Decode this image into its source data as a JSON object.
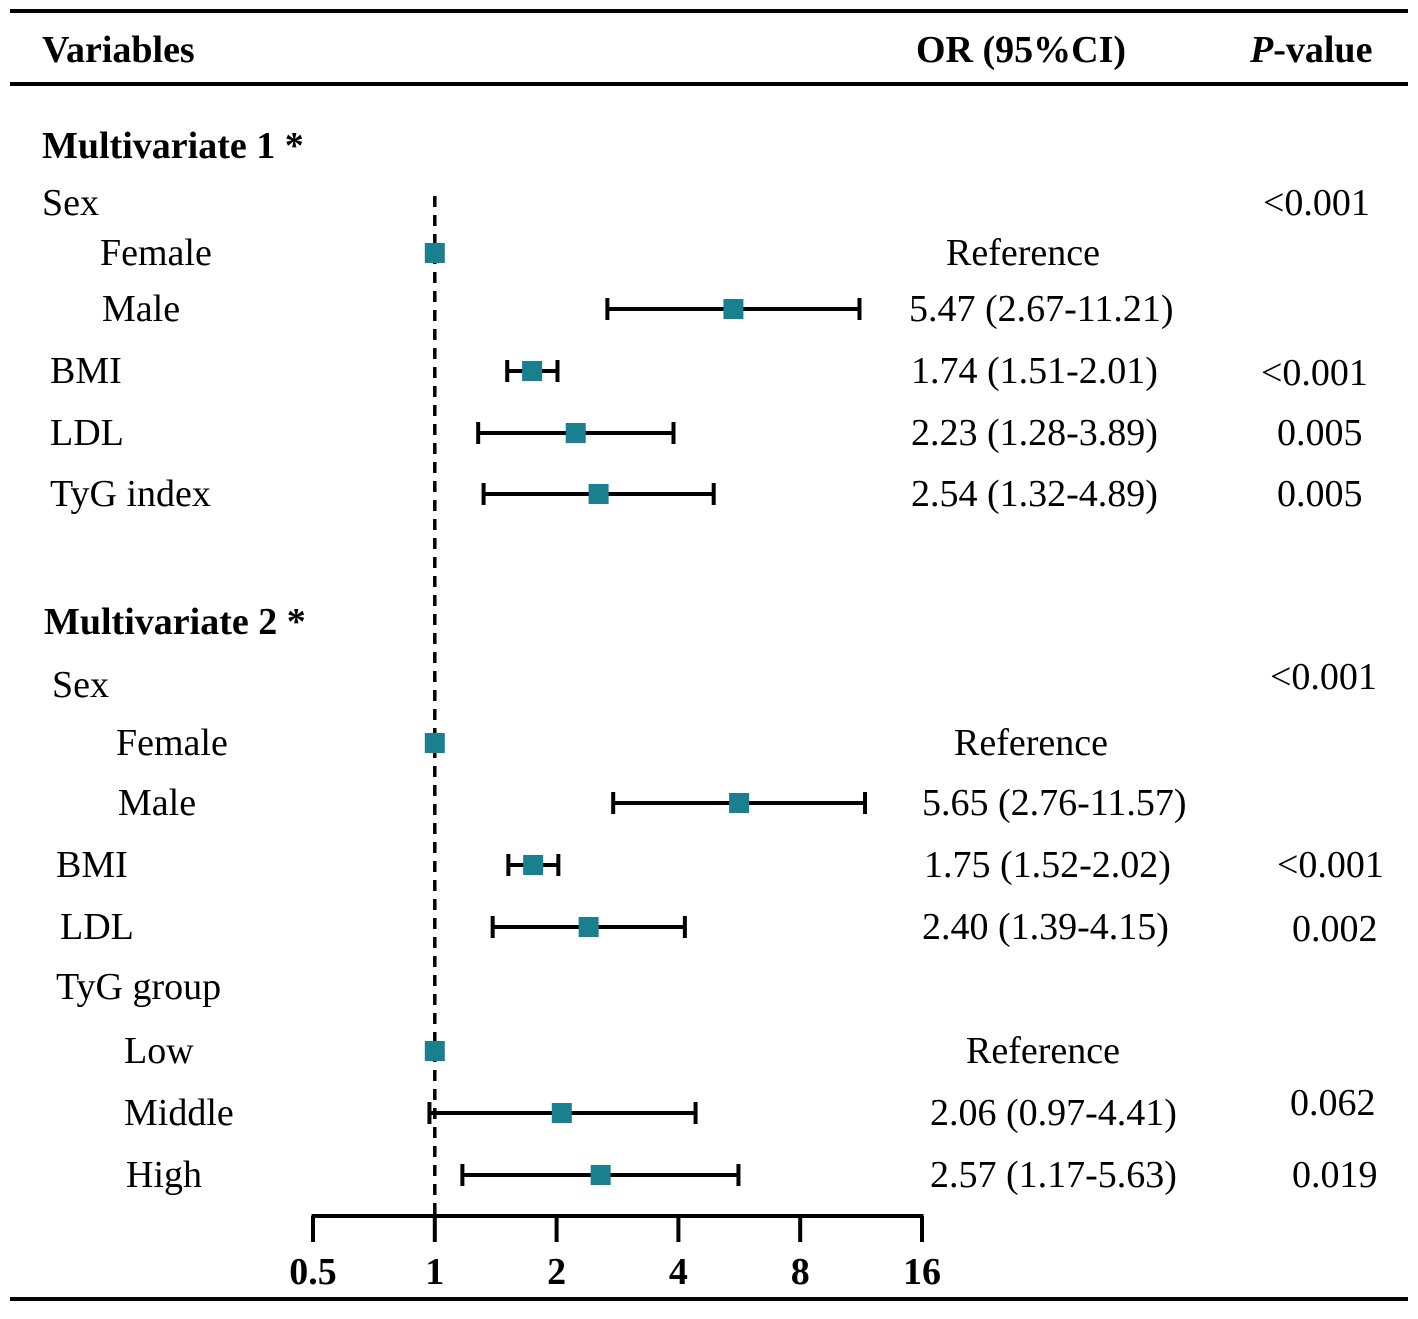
{
  "header": {
    "variables": "Variables",
    "or_ci": "OR (95%CI)",
    "p_italic": "P",
    "p_rest": "-value"
  },
  "colors": {
    "marker": "#1a7f8e",
    "line": "#000000"
  },
  "chart_data": {
    "type": "forest",
    "scale": "log2",
    "xlim": [
      0.5,
      16
    ],
    "ticks": [
      0.5,
      1,
      2,
      4,
      8,
      16
    ],
    "tick_labels": [
      "0.5",
      "1",
      "2",
      "4",
      "8",
      "16"
    ],
    "reference_line": 1,
    "sections": [
      {
        "title": "Multivariate 1 *",
        "rows": [
          {
            "label": "Sex",
            "or": null,
            "lo": null,
            "hi": null,
            "or_text": "",
            "p": "<0.001"
          },
          {
            "label": "Female",
            "or": 1,
            "lo": null,
            "hi": null,
            "or_text": "Reference",
            "p": ""
          },
          {
            "label": "Male",
            "or": 5.47,
            "lo": 2.67,
            "hi": 11.21,
            "or_text": "5.47 (2.67-11.21)",
            "p": ""
          },
          {
            "label": "BMI",
            "or": 1.74,
            "lo": 1.51,
            "hi": 2.01,
            "or_text": "1.74 (1.51-2.01)",
            "p": "<0.001"
          },
          {
            "label": "LDL",
            "or": 2.23,
            "lo": 1.28,
            "hi": 3.89,
            "or_text": "2.23 (1.28-3.89)",
            "p": "0.005"
          },
          {
            "label": "TyG index",
            "or": 2.54,
            "lo": 1.32,
            "hi": 4.89,
            "or_text": "2.54 (1.32-4.89)",
            "p": "0.005"
          }
        ]
      },
      {
        "title": "Multivariate 2 *",
        "rows": [
          {
            "label": "Sex",
            "or": null,
            "lo": null,
            "hi": null,
            "or_text": "",
            "p": "<0.001"
          },
          {
            "label": "Female",
            "or": 1,
            "lo": null,
            "hi": null,
            "or_text": "Reference",
            "p": ""
          },
          {
            "label": "Male",
            "or": 5.65,
            "lo": 2.76,
            "hi": 11.57,
            "or_text": "5.65 (2.76-11.57)",
            "p": ""
          },
          {
            "label": "BMI",
            "or": 1.75,
            "lo": 1.52,
            "hi": 2.02,
            "or_text": "1.75 (1.52-2.02)",
            "p": "<0.001"
          },
          {
            "label": "LDL",
            "or": 2.4,
            "lo": 1.39,
            "hi": 4.15,
            "or_text": "2.40 (1.39-4.15)",
            "p": "0.002"
          },
          {
            "label": "TyG group",
            "or": null,
            "lo": null,
            "hi": null,
            "or_text": "",
            "p": ""
          },
          {
            "label": "Low",
            "or": 1,
            "lo": null,
            "hi": null,
            "or_text": "Reference",
            "p": ""
          },
          {
            "label": "Middle",
            "or": 2.06,
            "lo": 0.97,
            "hi": 4.41,
            "or_text": "2.06 (0.97-4.41)",
            "p": "0.062"
          },
          {
            "label": "High",
            "or": 2.57,
            "lo": 1.17,
            "hi": 5.63,
            "or_text": "2.57 (1.17-5.63)",
            "p": "0.019"
          }
        ]
      }
    ]
  }
}
